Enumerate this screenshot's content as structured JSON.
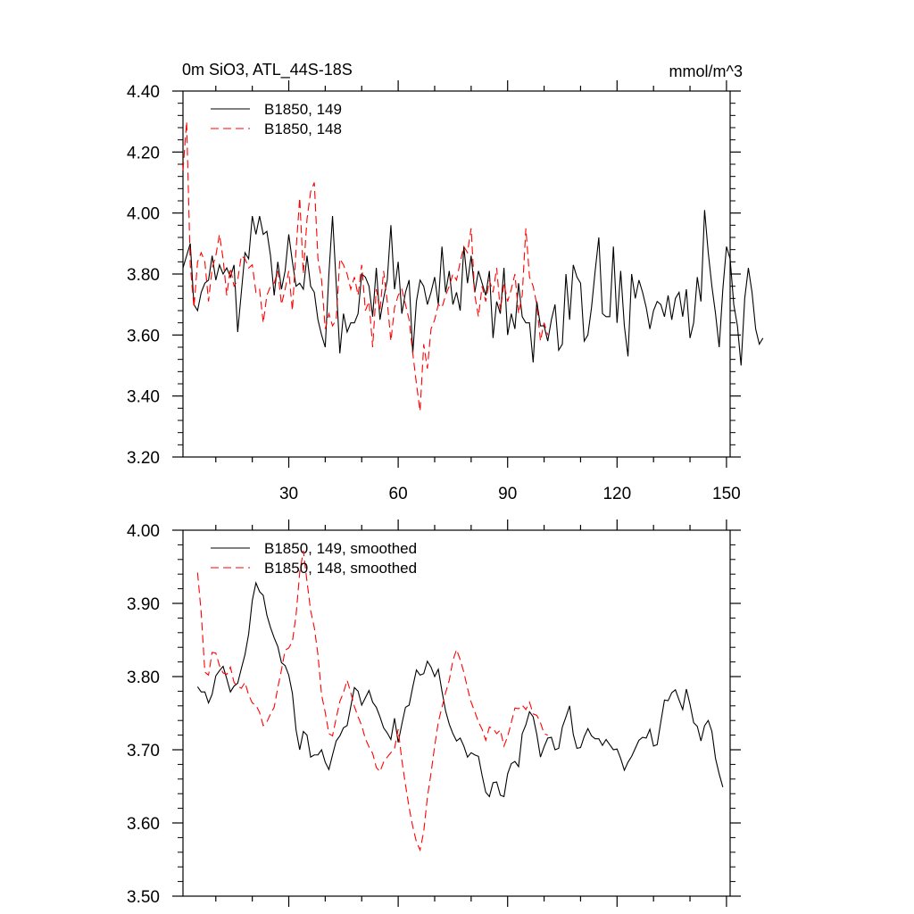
{
  "title_left": "0m SiO3, ATL_44S-18S",
  "title_right": "mmol/m^3",
  "colors": {
    "series_149": "#000000",
    "series_148": "#ff0000",
    "axis": "#000000"
  },
  "chart_data": [
    {
      "type": "line",
      "title": "0m SiO3, ATL_44S-18S",
      "units": "mmol/m^3",
      "xlim": [
        1,
        151
      ],
      "ylim": [
        3.2,
        4.4
      ],
      "x_tick_labels": [
        "30",
        "60",
        "90",
        "120",
        "150"
      ],
      "y_tick_labels": [
        "3.20",
        "3.40",
        "3.60",
        "3.80",
        "4.00",
        "4.20",
        "4.40"
      ],
      "legend_position": "top-left",
      "grid": false,
      "series": [
        {
          "name": "B1850, 149",
          "style": "solid",
          "color": "#000000",
          "x_start": 1,
          "values": [
            3.82,
            3.86,
            3.9,
            3.7,
            3.68,
            3.74,
            3.77,
            3.78,
            3.86,
            3.78,
            3.83,
            3.8,
            3.82,
            3.79,
            3.83,
            3.61,
            3.74,
            3.87,
            3.85,
            3.99,
            3.93,
            3.99,
            3.93,
            3.94,
            3.86,
            3.73,
            3.84,
            3.75,
            3.81,
            3.93,
            3.84,
            3.76,
            3.77,
            3.75,
            3.86,
            3.76,
            3.74,
            3.65,
            3.6,
            3.56,
            3.8,
            3.99,
            3.77,
            3.54,
            3.67,
            3.61,
            3.64,
            3.64,
            3.67,
            3.8,
            3.79,
            3.76,
            3.66,
            3.82,
            3.65,
            3.72,
            3.78,
            3.96,
            3.75,
            3.84,
            3.67,
            3.74,
            3.78,
            3.54,
            3.71,
            3.78,
            3.76,
            3.7,
            3.74,
            3.79,
            3.7,
            3.89,
            3.74,
            3.81,
            3.7,
            3.74,
            3.68,
            3.89,
            3.77,
            3.86,
            3.74,
            3.81,
            3.77,
            3.73,
            3.81,
            3.59,
            3.71,
            3.67,
            3.82,
            3.6,
            3.67,
            3.62,
            3.77,
            3.66,
            3.64,
            3.64,
            3.51,
            3.71,
            3.63,
            3.63,
            3.58,
            3.65,
            3.7,
            3.55,
            3.57,
            3.8,
            3.65,
            3.83,
            3.79,
            3.77,
            3.58,
            3.6,
            3.69,
            3.81,
            3.92,
            3.67,
            3.66,
            3.66,
            3.89,
            3.64,
            3.81,
            3.63,
            3.53,
            3.8,
            3.72,
            3.78,
            3.74,
            3.69,
            3.62,
            3.68,
            3.71,
            3.7,
            3.66,
            3.73,
            3.65,
            3.72,
            3.74,
            3.66,
            3.75,
            3.59,
            3.64,
            3.79,
            3.71,
            4.01,
            3.87,
            3.76,
            3.67,
            3.56,
            3.75,
            3.89,
            3.85,
            3.7,
            3.63,
            3.5,
            3.72,
            3.82,
            3.74,
            3.62,
            3.57,
            3.59
          ]
        },
        {
          "name": "B1850, 148",
          "style": "dashed",
          "color": "#ff0000",
          "x_start": 1,
          "values": [
            4.14,
            4.3,
            3.83,
            3.69,
            3.84,
            3.87,
            3.84,
            3.71,
            3.82,
            3.86,
            3.93,
            3.85,
            3.73,
            3.82,
            3.76,
            3.78,
            3.86,
            3.85,
            3.82,
            3.83,
            3.74,
            3.75,
            3.64,
            3.73,
            3.76,
            3.77,
            3.81,
            3.7,
            3.75,
            3.81,
            3.68,
            3.88,
            4.05,
            3.8,
            3.98,
            4.07,
            4.1,
            3.85,
            3.78,
            3.62,
            3.67,
            3.63,
            3.65,
            3.85,
            3.83,
            3.8,
            3.75,
            3.79,
            3.73,
            3.83,
            3.68,
            3.71,
            3.56,
            3.75,
            3.68,
            3.81,
            3.71,
            3.58,
            3.69,
            3.73,
            3.75,
            3.7,
            3.65,
            3.54,
            3.44,
            3.35,
            3.57,
            3.49,
            3.62,
            3.65,
            3.7,
            3.69,
            3.73,
            3.76,
            3.8,
            3.78,
            3.84,
            3.89,
            3.87,
            3.95,
            3.73,
            3.66,
            3.76,
            3.71,
            3.78,
            3.74,
            3.82,
            3.68,
            3.77,
            3.71,
            3.75,
            3.8,
            3.67,
            3.73,
            3.95,
            3.79,
            3.76,
            3.7,
            3.58,
            3.64,
            3.6
          ]
        }
      ]
    },
    {
      "type": "line",
      "xlim": [
        1,
        151
      ],
      "ylim": [
        3.5,
        4.0
      ],
      "y_tick_labels": [
        "3.50",
        "3.60",
        "3.70",
        "3.80",
        "3.90",
        "4.00"
      ],
      "legend_position": "top-left",
      "grid": false,
      "series": [
        {
          "name": "B1850, 149, smoothed",
          "style": "solid",
          "color": "#000000",
          "x_start": 5,
          "values": [
            3.786,
            3.779,
            3.779,
            3.764,
            3.776,
            3.801,
            3.808,
            3.814,
            3.797,
            3.779,
            3.787,
            3.791,
            3.811,
            3.83,
            3.858,
            3.904,
            3.928,
            3.916,
            3.911,
            3.884,
            3.867,
            3.853,
            3.841,
            3.819,
            3.815,
            3.802,
            3.777,
            3.727,
            3.7,
            3.725,
            3.72,
            3.69,
            3.693,
            3.693,
            3.7,
            3.683,
            3.673,
            3.693,
            3.712,
            3.719,
            3.73,
            3.733,
            3.759,
            3.785,
            3.78,
            3.761,
            3.771,
            3.781,
            3.765,
            3.758,
            3.745,
            3.73,
            3.723,
            3.714,
            3.743,
            3.71,
            3.735,
            3.758,
            3.761,
            3.786,
            3.809,
            3.802,
            3.804,
            3.821,
            3.813,
            3.8,
            3.81,
            3.78,
            3.753,
            3.735,
            3.722,
            3.712,
            3.716,
            3.705,
            3.69,
            3.696,
            3.693,
            3.691,
            3.665,
            3.642,
            3.636,
            3.655,
            3.656,
            3.638,
            3.636,
            3.667,
            3.681,
            3.684,
            3.677,
            3.722,
            3.734,
            3.752,
            3.745,
            3.721,
            3.69,
            3.704,
            3.716,
            3.717,
            3.7,
            3.702,
            3.731,
            3.745,
            3.76,
            3.721,
            3.702,
            3.703,
            3.718,
            3.729,
            3.719,
            3.715,
            3.715,
            3.706,
            3.714,
            3.707,
            3.7,
            3.701,
            3.688,
            3.672,
            3.683,
            3.691,
            3.702,
            3.713,
            3.717,
            3.716,
            3.728,
            3.705,
            3.707,
            3.738,
            3.768,
            3.767,
            3.778,
            3.782,
            3.768,
            3.755,
            3.783,
            3.762,
            3.737,
            3.732,
            3.712,
            3.733,
            3.74,
            3.725,
            3.688,
            3.667,
            3.649
          ]
        },
        {
          "name": "B1850, 148, smoothed",
          "style": "dashed",
          "color": "#ff0000",
          "x_start": 5,
          "values": [
            3.942,
            3.887,
            3.806,
            3.802,
            3.833,
            3.832,
            3.815,
            3.805,
            3.803,
            3.813,
            3.792,
            3.787,
            3.784,
            3.792,
            3.775,
            3.764,
            3.761,
            3.751,
            3.733,
            3.738,
            3.749,
            3.758,
            3.785,
            3.809,
            3.836,
            3.839,
            3.848,
            3.884,
            3.942,
            3.972,
            3.93,
            3.89,
            3.867,
            3.83,
            3.775,
            3.751,
            3.722,
            3.719,
            3.743,
            3.766,
            3.778,
            3.795,
            3.778,
            3.759,
            3.745,
            3.733,
            3.715,
            3.704,
            3.695,
            3.676,
            3.67,
            3.683,
            3.69,
            3.696,
            3.702,
            3.728,
            3.686,
            3.652,
            3.621,
            3.595,
            3.574,
            3.563,
            3.588,
            3.635,
            3.668,
            3.705,
            3.738,
            3.758,
            3.778,
            3.795,
            3.822,
            3.837,
            3.823,
            3.806,
            3.784,
            3.765,
            3.752,
            3.738,
            3.728,
            3.713,
            3.731,
            3.729,
            3.722,
            3.727,
            3.705,
            3.718,
            3.737,
            3.757,
            3.756,
            3.761,
            3.755,
            3.765,
            3.749,
            3.747,
            3.737,
            3.722,
            3.72
          ]
        }
      ]
    }
  ]
}
